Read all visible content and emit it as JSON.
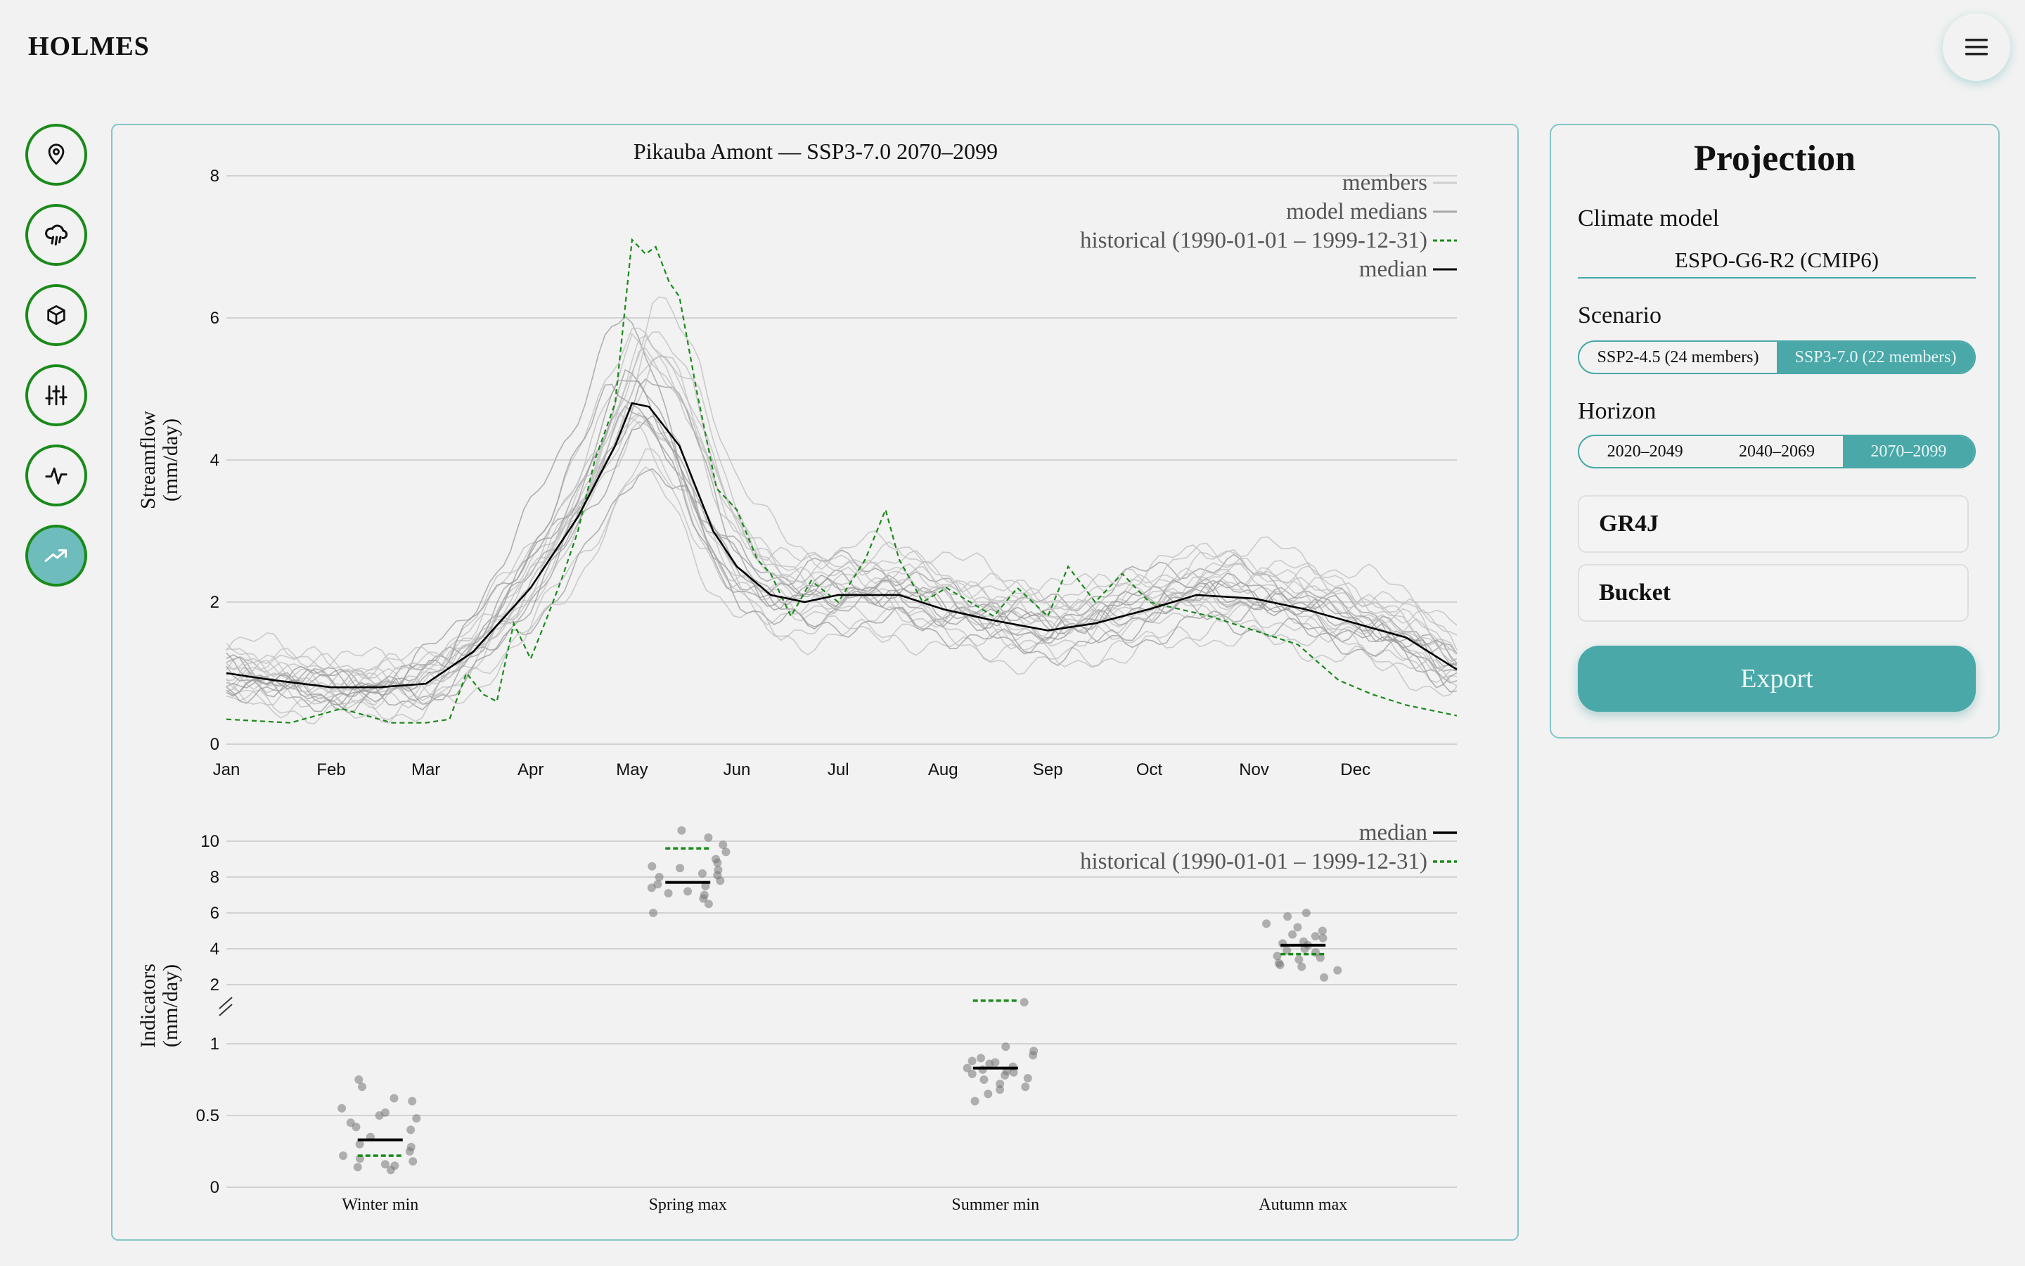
{
  "app": {
    "brand": "HOLMES"
  },
  "icons": {
    "menu": "hamburger-icon"
  },
  "sidebar": {
    "items": [
      {
        "name": "location",
        "icon": "map-pin-icon",
        "active": false
      },
      {
        "name": "weather",
        "icon": "rain-cloud-icon",
        "active": false
      },
      {
        "name": "model",
        "icon": "cube-icon",
        "active": false
      },
      {
        "name": "calibration",
        "icon": "sliders-icon",
        "active": false
      },
      {
        "name": "simulation",
        "icon": "activity-icon",
        "active": false
      },
      {
        "name": "projection",
        "icon": "trend-up-icon",
        "active": true
      }
    ]
  },
  "colors": {
    "accent": "#4aa8a8",
    "historical": "#1a8a1a",
    "median": "#000000",
    "members": "#bdbdbd",
    "border": "#86c6c6"
  },
  "panel": {
    "title": "Projection",
    "climate_model_label": "Climate model",
    "climate_model_value": "ESPO-G6-R2 (CMIP6)",
    "scenario_label": "Scenario",
    "scenarios": [
      {
        "label": "SSP2-4.5 (24 members)",
        "selected": false
      },
      {
        "label": "SSP3-7.0 (22 members)",
        "selected": true
      }
    ],
    "horizon_label": "Horizon",
    "horizons": [
      {
        "label": "2020–2049",
        "selected": false
      },
      {
        "label": "2040–2069",
        "selected": false
      },
      {
        "label": "2070–2099",
        "selected": true
      }
    ],
    "hydro_model": "GR4J",
    "snow_model": "Bucket",
    "export_label": "Export"
  },
  "chart_data": [
    {
      "type": "line",
      "title": "Pikauba Amont — SSP3-7.0 2070–2099",
      "ylabel": "Streamflow (mm/day)",
      "ylim": [
        0,
        8
      ],
      "yticks": [
        0,
        2,
        4,
        6,
        8
      ],
      "xticks": [
        "Jan",
        "Feb",
        "Mar",
        "Apr",
        "May",
        "Jun",
        "Jul",
        "Aug",
        "Sep",
        "Oct",
        "Nov",
        "Dec"
      ],
      "legend": [
        "members",
        "model medians",
        "historical (1990-01-01 – 1999-12-31)",
        "median"
      ],
      "legend_position": "top-right",
      "grid": true,
      "series": [
        {
          "name": "median",
          "x": [
            1,
            15,
            32,
            46,
            60,
            74,
            91,
            105,
            116,
            121,
            126,
            135,
            145,
            152,
            162,
            172,
            182,
            200,
            213,
            227,
            244,
            258,
            274,
            288,
            305,
            320,
            335,
            350,
            365
          ],
          "values": [
            1.0,
            0.9,
            0.8,
            0.8,
            0.85,
            1.3,
            2.2,
            3.2,
            4.2,
            4.8,
            4.75,
            4.2,
            3.0,
            2.5,
            2.1,
            2.0,
            2.1,
            2.1,
            1.9,
            1.75,
            1.6,
            1.7,
            1.9,
            2.1,
            2.05,
            1.9,
            1.7,
            1.5,
            1.05
          ]
        },
        {
          "name": "historical (1990-01-01 – 1999-12-31)",
          "x": [
            1,
            20,
            35,
            50,
            60,
            67,
            72,
            77,
            81,
            86,
            91,
            96,
            100,
            105,
            110,
            116,
            121,
            125,
            128,
            132,
            135,
            140,
            146,
            152,
            158,
            162,
            168,
            174,
            182,
            190,
            196,
            200,
            207,
            214,
            221,
            228,
            235,
            244,
            250,
            258,
            266,
            274,
            283,
            292,
            305,
            318,
            330,
            340,
            350,
            365
          ],
          "values": [
            0.35,
            0.3,
            0.5,
            0.3,
            0.3,
            0.35,
            1.0,
            0.7,
            0.6,
            1.7,
            1.2,
            1.8,
            2.3,
            3.0,
            4.0,
            4.8,
            7.1,
            6.9,
            7.0,
            6.5,
            6.3,
            5.0,
            3.6,
            3.3,
            2.6,
            2.4,
            1.8,
            2.3,
            2.0,
            2.6,
            3.3,
            2.6,
            2.0,
            2.2,
            2.0,
            1.8,
            2.2,
            1.8,
            2.5,
            2.0,
            2.4,
            2.0,
            1.9,
            1.8,
            1.6,
            1.4,
            0.9,
            0.7,
            0.55,
            0.4
          ]
        }
      ],
      "members_count": 22
    },
    {
      "type": "scatter",
      "ylabel": "Indicators (mm/day)",
      "categories": [
        "Winter min",
        "Spring max",
        "Summer min",
        "Autumn max"
      ],
      "axis_break": true,
      "lower_yticks": [
        0,
        0.5,
        1
      ],
      "upper_yticks": [
        2,
        4,
        6,
        8,
        10
      ],
      "legend": [
        "median",
        "historical (1990-01-01 – 1999-12-31)"
      ],
      "legend_position": "top-right",
      "median": [
        0.33,
        7.7,
        0.83,
        4.2
      ],
      "historical": [
        0.22,
        9.6,
        1.11,
        3.7
      ],
      "members": [
        [
          0.15,
          0.2,
          0.25,
          0.3,
          0.35,
          0.4,
          0.45,
          0.5,
          0.55,
          0.6,
          0.12,
          0.18,
          0.22,
          0.28,
          0.42,
          0.48,
          0.52,
          0.62,
          0.7,
          0.75,
          0.14,
          0.16
        ],
        [
          6.0,
          6.5,
          6.8,
          7.0,
          7.2,
          7.4,
          7.6,
          7.8,
          8.0,
          8.2,
          8.4,
          8.6,
          8.8,
          9.0,
          9.4,
          9.8,
          10.2,
          10.6,
          7.1,
          7.5,
          8.1,
          8.5
        ],
        [
          0.6,
          0.65,
          0.7,
          0.72,
          0.75,
          0.78,
          0.8,
          0.82,
          0.84,
          0.86,
          0.88,
          0.9,
          0.92,
          0.95,
          0.98,
          1.02,
          0.76,
          0.79,
          0.81,
          0.83,
          0.87,
          0.68
        ],
        [
          2.4,
          2.8,
          3.0,
          3.2,
          3.4,
          3.6,
          3.8,
          4.0,
          4.2,
          4.4,
          4.6,
          4.8,
          5.0,
          5.4,
          5.8,
          6.0,
          3.1,
          3.5,
          3.9,
          4.3,
          4.7,
          5.2
        ]
      ]
    }
  ]
}
